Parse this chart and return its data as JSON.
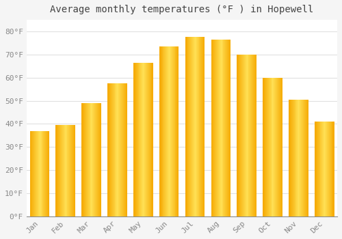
{
  "title": "Average monthly temperatures (°F ) in Hopewell",
  "months": [
    "Jan",
    "Feb",
    "Mar",
    "Apr",
    "May",
    "Jun",
    "Jul",
    "Aug",
    "Sep",
    "Oct",
    "Nov",
    "Dec"
  ],
  "values": [
    37,
    39.5,
    49,
    57.5,
    66.5,
    73.5,
    77.5,
    76.5,
    70,
    60,
    50.5,
    41
  ],
  "bar_color_center": "#FFD966",
  "bar_color_edge": "#F5A800",
  "background_color": "#f5f5f5",
  "plot_bg_color": "#ffffff",
  "ylim": [
    0,
    85
  ],
  "yticks": [
    0,
    10,
    20,
    30,
    40,
    50,
    60,
    70,
    80
  ],
  "ytick_labels": [
    "0°F",
    "10°F",
    "20°F",
    "30°F",
    "40°F",
    "50°F",
    "60°F",
    "70°F",
    "80°F"
  ],
  "grid_color": "#e0e0e0",
  "title_fontsize": 10,
  "tick_fontsize": 8,
  "font_family": "monospace"
}
